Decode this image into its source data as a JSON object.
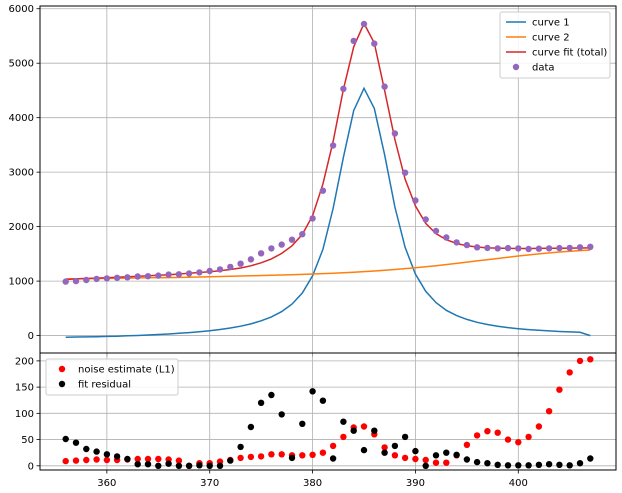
{
  "chart_data": [
    {
      "type": "line",
      "panel": "top",
      "xlim": [
        353.5,
        409.5
      ],
      "ylim": [
        -320,
        6050
      ],
      "xticks": [
        360,
        370,
        380,
        390,
        400
      ],
      "yticks": [
        0,
        1000,
        2000,
        3000,
        4000,
        5000,
        6000
      ],
      "grid": true,
      "legend_position": "top-right",
      "series": [
        {
          "name": "curve 1",
          "color": "#1f77b4",
          "style": "line",
          "x": [
            356,
            357,
            358,
            359,
            360,
            361,
            362,
            363,
            364,
            365,
            366,
            367,
            368,
            369,
            370,
            371,
            372,
            373,
            374,
            375,
            376,
            377,
            378,
            379,
            380,
            381,
            382,
            383,
            384,
            385,
            386,
            387,
            388,
            389,
            390,
            391,
            392,
            393,
            394,
            395,
            396,
            397,
            398,
            399,
            400,
            401,
            402,
            403,
            404,
            405,
            406,
            407
          ],
          "y": [
            -30,
            -27,
            -24,
            -20,
            -16,
            -11,
            -5,
            2,
            10,
            19,
            29,
            41,
            55,
            71,
            89,
            112,
            139,
            172,
            215,
            271,
            343,
            440,
            578,
            782,
            1097,
            1581,
            2332,
            3273,
            4130,
            4540,
            4170,
            3320,
            2360,
            1620,
            1130,
            812,
            605,
            464,
            367,
            297,
            244,
            203,
            172,
            147,
            127,
            110,
            96,
            85,
            75,
            67,
            60,
            0
          ]
        },
        {
          "name": "curve 2",
          "color": "#ff7f0e",
          "style": "line",
          "x": [
            356,
            358,
            360,
            362,
            364,
            366,
            368,
            370,
            372,
            374,
            376,
            378,
            380,
            382,
            384,
            386,
            388,
            390,
            392,
            394,
            396,
            398,
            400,
            402,
            404,
            406,
            407
          ],
          "y": [
            1040,
            1045,
            1050,
            1055,
            1060,
            1065,
            1072,
            1080,
            1088,
            1098,
            1108,
            1118,
            1130,
            1145,
            1162,
            1185,
            1212,
            1245,
            1283,
            1325,
            1370,
            1415,
            1460,
            1500,
            1535,
            1560,
            1570
          ]
        },
        {
          "name": "curve fit (total)",
          "color": "#d62728",
          "style": "line",
          "x": [
            356,
            357,
            358,
            359,
            360,
            361,
            362,
            363,
            364,
            365,
            366,
            367,
            368,
            369,
            370,
            371,
            372,
            373,
            374,
            375,
            376,
            377,
            378,
            379,
            380,
            381,
            382,
            383,
            384,
            385,
            386,
            387,
            388,
            389,
            390,
            391,
            392,
            393,
            394,
            395,
            396,
            397,
            398,
            399,
            400,
            401,
            402,
            403,
            404,
            405,
            406,
            407
          ],
          "y": [
            1030,
            1040,
            1048,
            1055,
            1062,
            1070,
            1078,
            1087,
            1097,
            1107,
            1118,
            1130,
            1143,
            1157,
            1172,
            1190,
            1212,
            1240,
            1280,
            1335,
            1408,
            1508,
            1648,
            1858,
            2200,
            2780,
            3560,
            4520,
            5300,
            5730,
            5370,
            4500,
            3600,
            2870,
            2380,
            2060,
            1870,
            1760,
            1690,
            1650,
            1625,
            1610,
            1605,
            1600,
            1598,
            1598,
            1600,
            1602,
            1604,
            1606,
            1608,
            1610
          ]
        },
        {
          "name": "data",
          "color": "#9467bd",
          "style": "points",
          "x": [
            356,
            357,
            358,
            359,
            360,
            361,
            362,
            363,
            364,
            365,
            366,
            367,
            368,
            369,
            370,
            371,
            372,
            373,
            374,
            375,
            376,
            377,
            378,
            379,
            380,
            381,
            382,
            383,
            384,
            385,
            386,
            387,
            388,
            389,
            390,
            391,
            392,
            393,
            394,
            395,
            396,
            397,
            398,
            399,
            400,
            401,
            402,
            403,
            404,
            405,
            406,
            407
          ],
          "y": [
            990,
            1000,
            1020,
            1040,
            1050,
            1060,
            1070,
            1085,
            1090,
            1100,
            1120,
            1125,
            1140,
            1160,
            1185,
            1215,
            1260,
            1320,
            1400,
            1510,
            1600,
            1670,
            1760,
            1860,
            2150,
            2660,
            3490,
            4530,
            5410,
            5720,
            5360,
            4570,
            3710,
            2990,
            2480,
            2130,
            1920,
            1800,
            1710,
            1660,
            1620,
            1610,
            1600,
            1605,
            1600,
            1590,
            1595,
            1600,
            1605,
            1610,
            1620,
            1630
          ]
        }
      ]
    },
    {
      "type": "scatter",
      "panel": "bottom",
      "xlim": [
        353.5,
        409.5
      ],
      "ylim": [
        -8,
        215
      ],
      "xticks": [
        360,
        370,
        380,
        390,
        400
      ],
      "yticks": [
        0,
        50,
        100,
        150,
        200
      ],
      "grid": true,
      "legend_position": "top-left",
      "series": [
        {
          "name": "noise estimate (L1)",
          "color": "#ff0000",
          "x": [
            356,
            357,
            358,
            359,
            360,
            361,
            362,
            363,
            364,
            365,
            366,
            367,
            368,
            369,
            370,
            371,
            372,
            373,
            374,
            375,
            376,
            377,
            378,
            379,
            380,
            381,
            382,
            383,
            384,
            385,
            386,
            387,
            388,
            389,
            390,
            391,
            392,
            393,
            394,
            395,
            396,
            397,
            398,
            399,
            400,
            401,
            402,
            403,
            404,
            405,
            406,
            407
          ],
          "y": [
            9,
            10,
            11,
            12,
            11,
            11,
            12,
            13,
            13,
            13,
            12,
            10,
            0,
            5,
            5,
            8,
            11,
            15,
            17,
            18,
            22,
            22,
            20,
            20,
            21,
            25,
            38,
            55,
            73,
            75,
            60,
            35,
            20,
            15,
            13,
            11,
            6,
            6,
            20,
            40,
            58,
            66,
            63,
            50,
            45,
            55,
            75,
            104,
            145,
            178,
            200,
            203
          ]
        },
        {
          "name": "fit residual",
          "color": "#000000",
          "x": [
            356,
            357,
            358,
            359,
            360,
            361,
            362,
            363,
            364,
            365,
            366,
            367,
            368,
            369,
            370,
            371,
            372,
            373,
            374,
            375,
            376,
            377,
            378,
            379,
            380,
            381,
            382,
            383,
            384,
            385,
            386,
            387,
            388,
            389,
            390,
            391,
            392,
            393,
            394,
            395,
            396,
            397,
            398,
            399,
            400,
            401,
            402,
            403,
            404,
            405,
            406,
            407
          ],
          "y": [
            51,
            44,
            32,
            27,
            22,
            18,
            13,
            3,
            3,
            0,
            4,
            0,
            0,
            1,
            0,
            0,
            10,
            36,
            74,
            120,
            135,
            98,
            15,
            80,
            142,
            124,
            14,
            84,
            67,
            30,
            67,
            25,
            38,
            55,
            28,
            0,
            20,
            25,
            21,
            12,
            7,
            5,
            2,
            1,
            1,
            1,
            2,
            3,
            2,
            1,
            5,
            14
          ]
        }
      ]
    }
  ]
}
